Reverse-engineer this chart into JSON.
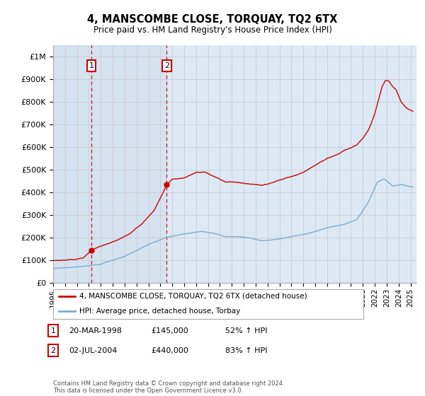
{
  "title": "4, MANSCOMBE CLOSE, TORQUAY, TQ2 6TX",
  "subtitle": "Price paid vs. HM Land Registry's House Price Index (HPI)",
  "legend_line1": "4, MANSCOMBE CLOSE, TORQUAY, TQ2 6TX (detached house)",
  "legend_line2": "HPI: Average price, detached house, Torbay",
  "footnote": "Contains HM Land Registry data © Crown copyright and database right 2024.\nThis data is licensed under the Open Government Licence v3.0.",
  "transaction1_date": "20-MAR-1998",
  "transaction1_price": "£145,000",
  "transaction1_hpi": "52% ↑ HPI",
  "transaction2_date": "02-JUL-2004",
  "transaction2_price": "£440,000",
  "transaction2_hpi": "83% ↑ HPI",
  "red_line_color": "#cc0000",
  "blue_line_color": "#7aabcf",
  "background_color": "#ffffff",
  "grid_color": "#cccccc",
  "plot_bg_color": "#dce9f5",
  "ylim": [
    0,
    1050000
  ],
  "yticks": [
    0,
    100000,
    200000,
    300000,
    400000,
    500000,
    600000,
    700000,
    800000,
    900000,
    1000000
  ],
  "ytick_labels": [
    "£0",
    "£100K",
    "£200K",
    "£300K",
    "£400K",
    "£500K",
    "£600K",
    "£700K",
    "£800K",
    "£900K",
    "£1M"
  ]
}
